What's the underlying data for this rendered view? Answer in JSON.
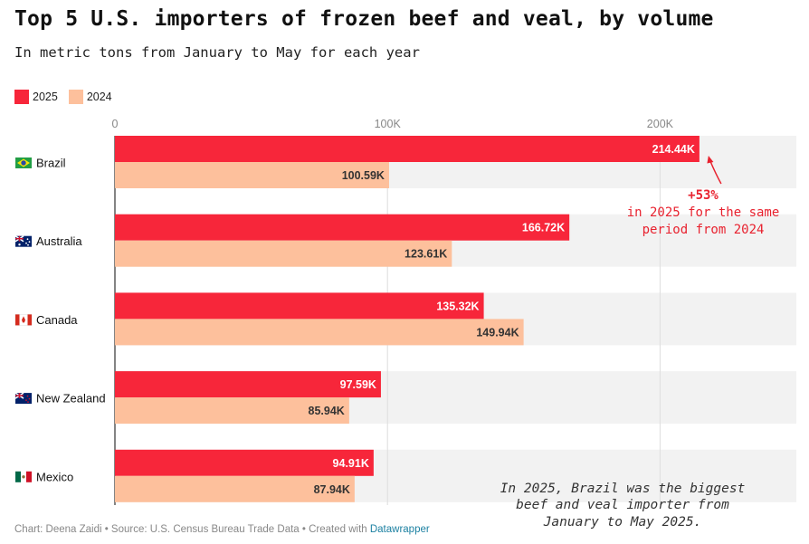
{
  "chart_data": {
    "type": "bar",
    "orientation": "horizontal",
    "title": "Top 5 U.S. importers of frozen beef and veal, by volume",
    "subtitle": "In metric tons from January to May for each year",
    "categories": [
      "Brazil",
      "Australia",
      "Canada",
      "New Zealand",
      "Mexico"
    ],
    "series": [
      {
        "name": "2025",
        "color": "#f7263a",
        "values": [
          214.44,
          166.72,
          135.32,
          97.59,
          94.91
        ],
        "labels": [
          "214.44K",
          "166.72K",
          "135.32K",
          "97.59K",
          "94.91K"
        ]
      },
      {
        "name": "2024",
        "color": "#fdc09c",
        "values": [
          100.59,
          123.61,
          149.94,
          85.94,
          87.94
        ],
        "labels": [
          "100.59K",
          "123.61K",
          "149.94K",
          "85.94K",
          "87.94K"
        ]
      }
    ],
    "unit": "thousand metric tons",
    "xlim": [
      0,
      250
    ],
    "ticks": [
      0,
      100,
      200
    ],
    "tick_labels": [
      "0",
      "100K",
      "200K"
    ],
    "flags": [
      "brazil-flag-icon",
      "australia-flag-icon",
      "canada-flag-icon",
      "new-zealand-flag-icon",
      "mexico-flag-icon"
    ],
    "annotations": [
      {
        "lines": [
          "+53%",
          "in 2025 for the same",
          "period from 2024"
        ],
        "color": "#e8222f"
      },
      {
        "lines": [
          "In 2025, Brazil was the biggest",
          "beef and veal importer from",
          "January to May 2025."
        ],
        "color": "#333333"
      }
    ]
  },
  "footer": {
    "text": "Chart: Deena  Zaidi • Source: U.S. Census Bureau Trade Data • Created with ",
    "link": "Datawrapper"
  }
}
